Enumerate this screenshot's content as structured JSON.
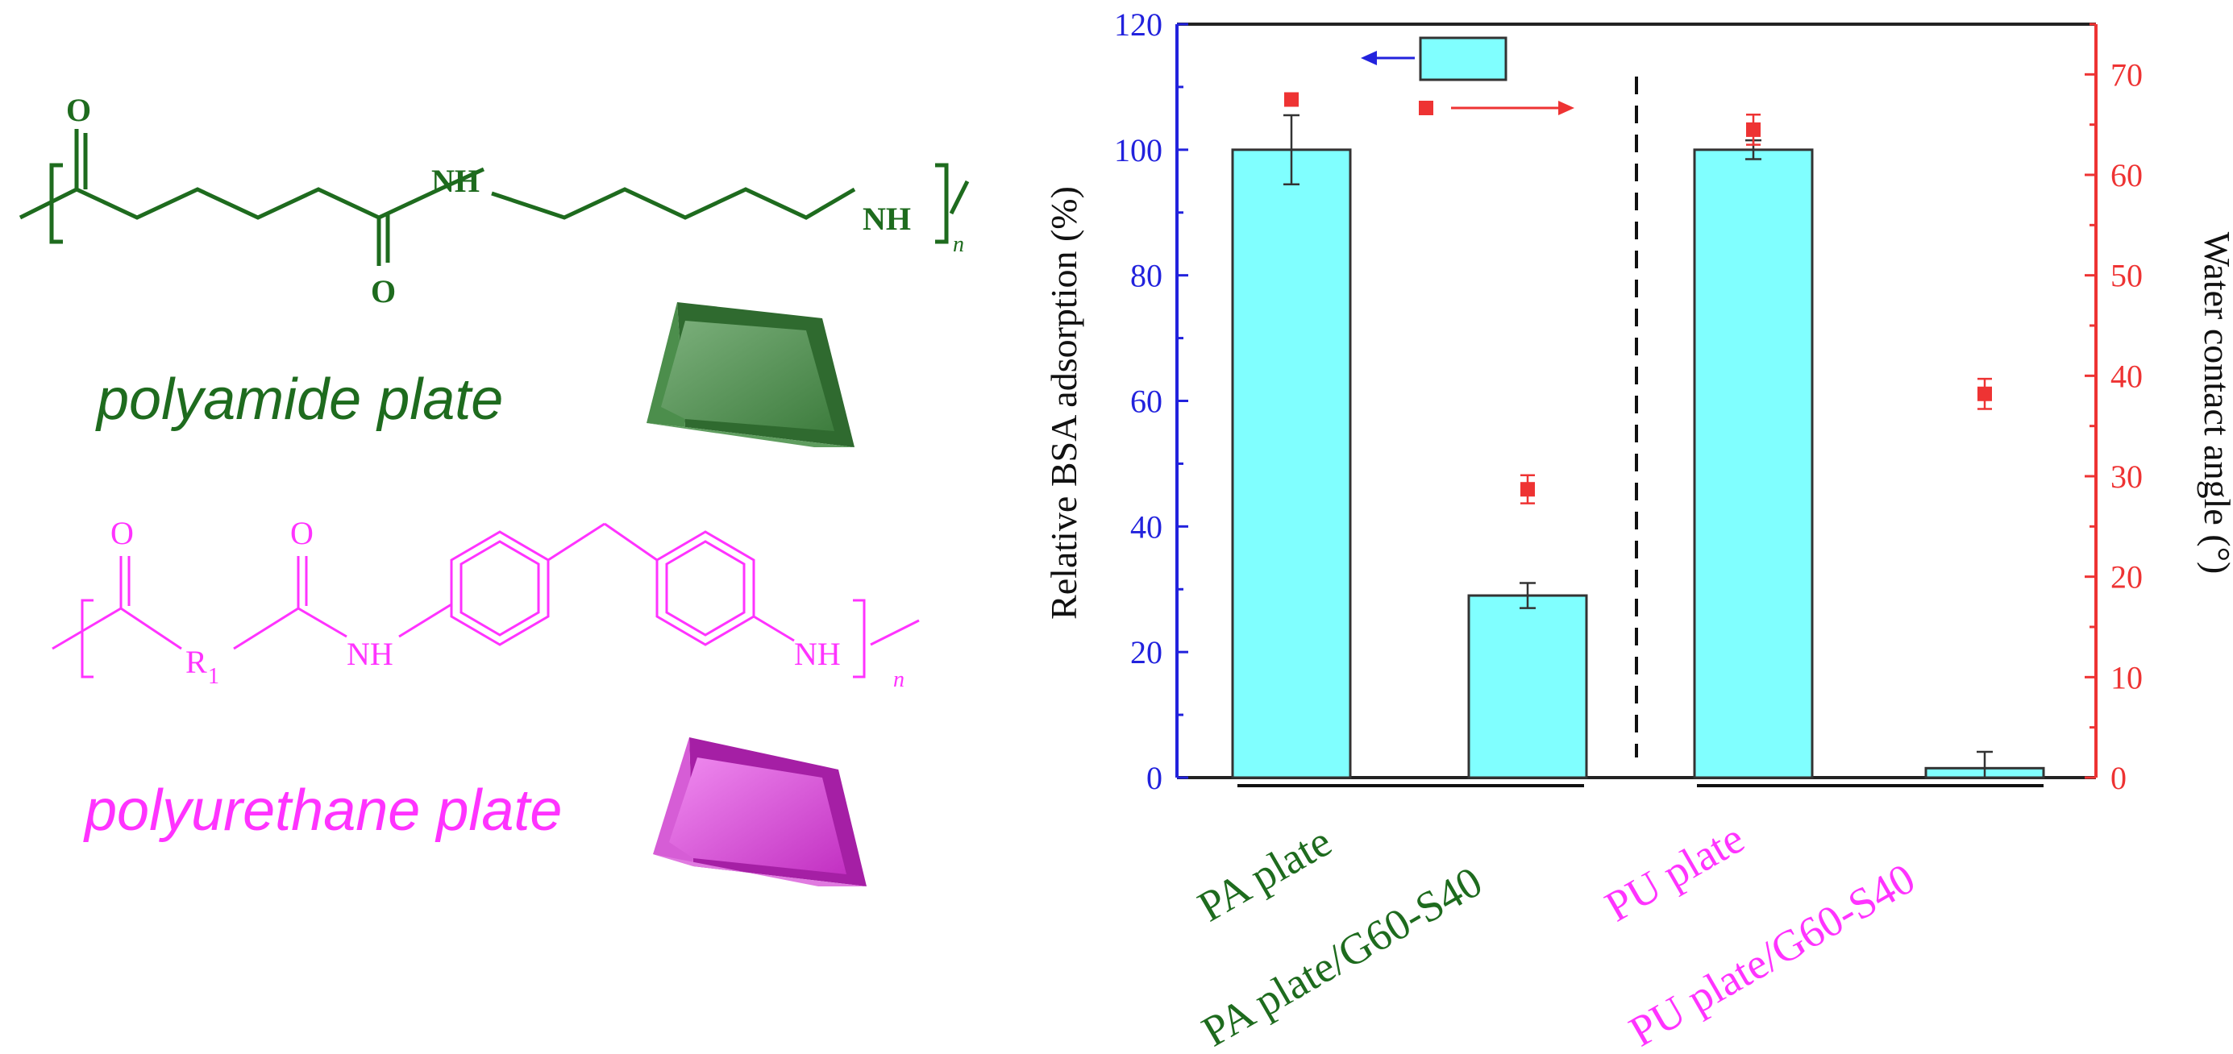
{
  "figure": {
    "polyamide": {
      "label": "polyamide plate",
      "atom_o": "O",
      "atom_nh": "NH",
      "subscript_n": "n",
      "color": "#1e6b1e"
    },
    "polyurethane": {
      "label": "polyurethane plate",
      "atom_o": "O",
      "atom_nh": "NH",
      "atom_r": "R",
      "atom_r_sub": "1",
      "subscript_n": "n",
      "color": "#ff33ff"
    },
    "legend": {
      "bar_arrow": "left",
      "point_arrow": "right"
    }
  },
  "chart_data": {
    "type": "bar",
    "categories": [
      "PA plate",
      "PA plate/G60-S40",
      "PU plate",
      "PU plate/G60-S40"
    ],
    "category_colors": [
      "#1e6b1e",
      "#1e6b1e",
      "#ff33ff",
      "#ff33ff"
    ],
    "bar_series": {
      "values": [
        100,
        29,
        100,
        1.5
      ],
      "errors": [
        5.5,
        2,
        1.5,
        2.6
      ],
      "color": "#80ffff",
      "axis": "left"
    },
    "point_series": {
      "values": [
        67.5,
        28.7,
        64.5,
        38.2
      ],
      "errors": [
        0.6,
        1.4,
        1.5,
        1.5
      ],
      "color": "#ee3333",
      "axis": "right"
    },
    "ylabel": "Relative BSA adsorption (%)",
    "y2label": "Water contact angle (°)",
    "ylim": [
      0,
      120
    ],
    "y2lim": [
      0,
      75
    ],
    "yticks": [
      "0",
      "20",
      "40",
      "60",
      "80",
      "100",
      "120"
    ],
    "y2ticks": [
      "0",
      "10",
      "20",
      "30",
      "40",
      "50",
      "60",
      "70"
    ],
    "left_axis_color": "#2222dd",
    "right_axis_color": "#ee3333",
    "group_divider": "dashed",
    "grid": false
  }
}
